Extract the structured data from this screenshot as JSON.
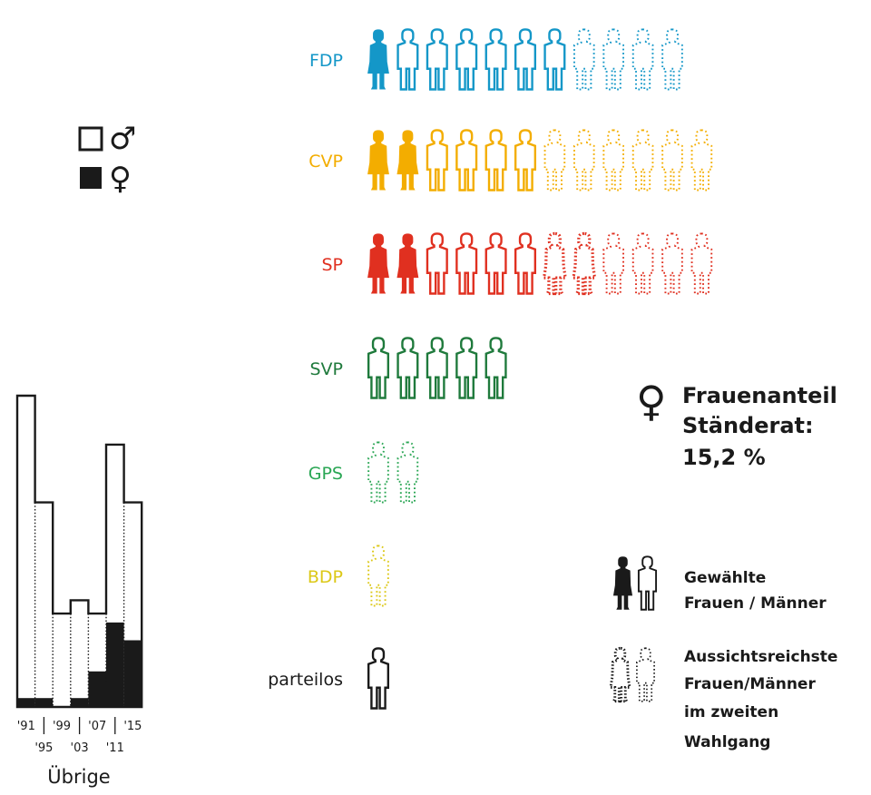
{
  "colors": {
    "FDP": "#1497c8",
    "CVP": "#f3ad00",
    "SP": "#e03020",
    "SVP": "#1f7a3c",
    "GPS": "#2aa654",
    "BDP": "#dcc817",
    "parteilos": "#1a1a1a",
    "ink": "#1a1a1a"
  },
  "symbol_legend": {
    "male_symbol": "♂",
    "female_symbol": "♀"
  },
  "stat": {
    "symbol": "♀",
    "line1": "Frauenanteil",
    "line2": "Ständerat:",
    "value": "15,2 %"
  },
  "legend": {
    "elected": [
      "Gewählte",
      "Frauen / Männer"
    ],
    "runoff": [
      "Aussichtsreichste",
      "Frauen/Männer",
      "im zweiten",
      "Wahlgang"
    ]
  },
  "chart_data": [
    {
      "type": "pictogram",
      "unit": "Sitz",
      "categories": [
        "FDP",
        "CVP",
        "SP",
        "SVP",
        "GPS",
        "BDP",
        "parteilos"
      ],
      "series": [
        {
          "name": "Gewählte Frauen",
          "values": [
            1,
            2,
            2,
            0,
            0,
            0,
            0
          ]
        },
        {
          "name": "Gewählte Männer",
          "values": [
            6,
            4,
            4,
            5,
            0,
            0,
            1
          ]
        },
        {
          "name": "Aussichtsreichste Frauen im zweiten Wahlgang",
          "values": [
            0,
            0,
            2,
            0,
            0,
            0,
            0
          ]
        },
        {
          "name": "Aussichtsreichste Männer im zweiten Wahlgang",
          "values": [
            4,
            6,
            4,
            0,
            2,
            1,
            0
          ]
        }
      ]
    },
    {
      "type": "bar",
      "title": "Übrige",
      "categories": [
        "'91",
        "'95",
        "'99",
        "'03",
        "'07",
        "'11",
        "'15"
      ],
      "series": [
        {
          "name": "Frauen",
          "values": [
            2,
            2,
            0,
            2,
            8,
            19,
            15
          ]
        },
        {
          "name": "Männer",
          "values": [
            68,
            44,
            21,
            22,
            13,
            40,
            31
          ]
        }
      ],
      "totals": [
        70,
        46,
        21,
        24,
        21,
        59,
        46
      ]
    }
  ]
}
